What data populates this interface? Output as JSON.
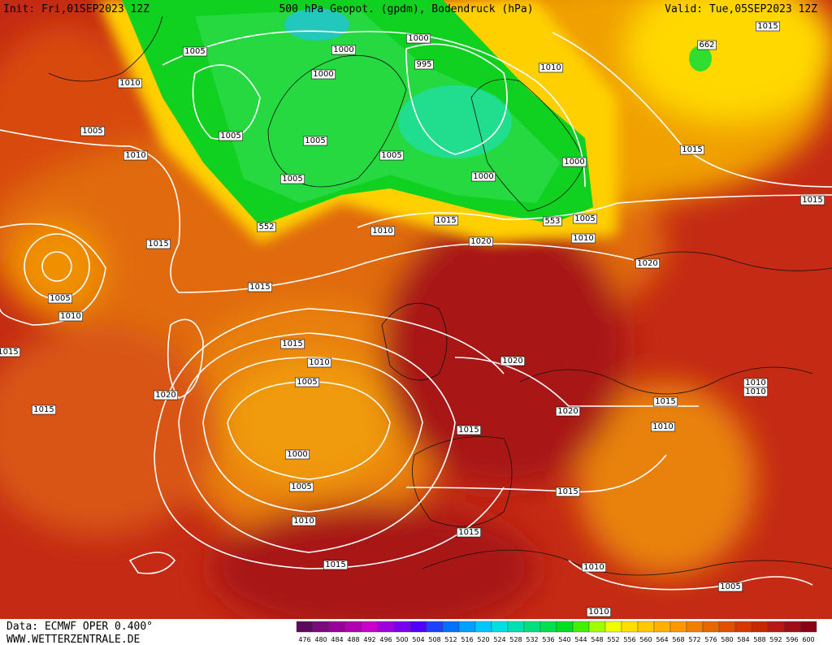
{
  "header": {
    "init": "Init: Fri,01SEP2023 12Z",
    "title": "500 hPa Geopot. (gpdm), Bodendruck (hPa)",
    "valid": "Valid: Tue,05SEP2023 12Z"
  },
  "footer": {
    "source": "Data: ECMWF OPER 0.400°",
    "website": "WWW.WETTERZENTRALE.DE"
  },
  "colorbar": {
    "ticks": [
      476,
      480,
      484,
      488,
      492,
      496,
      500,
      504,
      508,
      512,
      516,
      520,
      524,
      528,
      532,
      536,
      540,
      544,
      548,
      552,
      556,
      560,
      564,
      568,
      572,
      576,
      580,
      584,
      588,
      592,
      596,
      600
    ],
    "colors": [
      "#5c0a5c",
      "#7a0a7a",
      "#990099",
      "#b000b0",
      "#cc00cc",
      "#a000e0",
      "#7a00f0",
      "#5000ff",
      "#2040ff",
      "#0070ff",
      "#00a0ff",
      "#00c8ff",
      "#00e0e0",
      "#00e0b0",
      "#00e080",
      "#00e050",
      "#00e020",
      "#40f000",
      "#a0ff00",
      "#f0ff00",
      "#ffe000",
      "#ffc800",
      "#ffb000",
      "#ff9800",
      "#f08000",
      "#e86800",
      "#e05000",
      "#d83800",
      "#c82800",
      "#b81818",
      "#a00c18",
      "#880018"
    ]
  },
  "map_labels": [
    1005,
    1000,
    1000,
    995,
    1010,
    1015,
    662,
    1000,
    1010,
    1005,
    1005,
    1005,
    1010,
    1005,
    1015,
    1000,
    1005,
    1000,
    1015,
    552,
    1010,
    1015,
    553,
    1005,
    1010,
    1020,
    1015,
    1020,
    1015,
    1005,
    1010,
    1015,
    1015,
    1010,
    1005,
    1020,
    1010,
    1010,
    1020,
    1015,
    1015,
    1020,
    1015,
    1010,
    1000,
    1005,
    1015,
    1010,
    1015,
    1015,
    1010,
    1005,
    1010
  ]
}
